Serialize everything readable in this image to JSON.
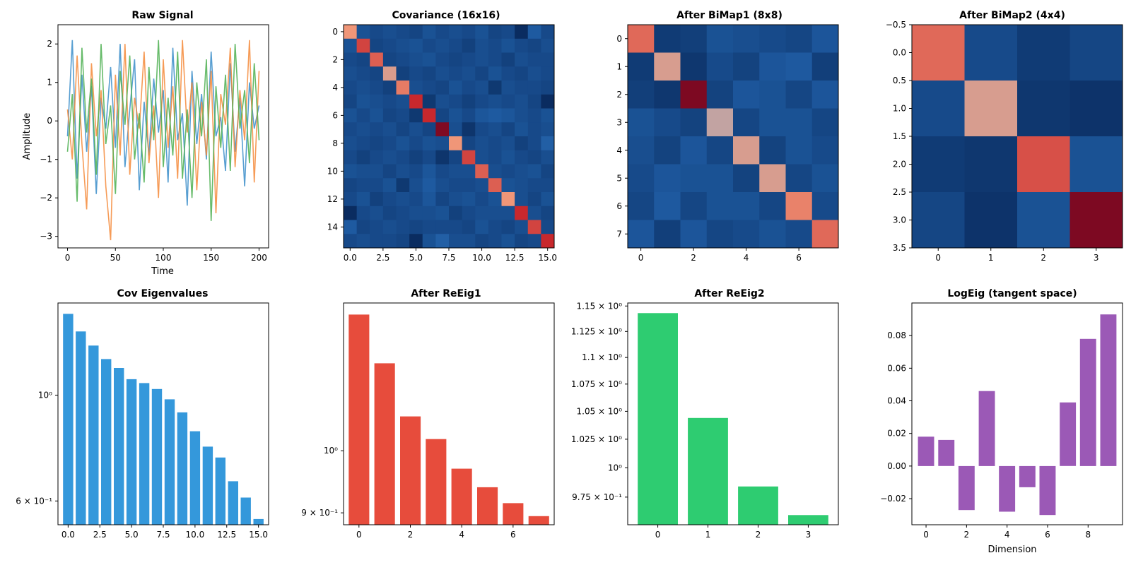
{
  "chart_data": [
    {
      "id": "raw",
      "type": "line",
      "title": "Raw Signal",
      "xlabel": "Time",
      "ylabel": "Amplitude",
      "xlim": [
        -10,
        210
      ],
      "ylim": [
        -3.3,
        2.5
      ],
      "xticks": [
        0,
        50,
        100,
        150,
        200
      ],
      "yticks": [
        -3,
        -2,
        -1,
        0,
        1,
        2
      ],
      "colors": [
        "#3a8dc9",
        "#f58a3a",
        "#4caf50"
      ],
      "series": [
        {
          "x": [
            0,
            5,
            10,
            15,
            20,
            25,
            30,
            35,
            40,
            45,
            50,
            55,
            60,
            65,
            70,
            75,
            80,
            85,
            90,
            95,
            100,
            105,
            110,
            115,
            120,
            125,
            130,
            135,
            140,
            145,
            150,
            155,
            160,
            165,
            170,
            175,
            180,
            185,
            190,
            195,
            200
          ],
          "values": [
            -0.4,
            2.1,
            -1.5,
            1.2,
            -0.8,
            0.9,
            -1.9,
            0.6,
            -0.2,
            1.4,
            -0.7,
            2.0,
            -1.2,
            0.3,
            1.6,
            -1.8,
            0.5,
            -0.9,
            1.1,
            -0.3,
            0.8,
            -1.6,
            1.9,
            -0.5,
            0.2,
            -2.2,
            1.3,
            -0.6,
            0.7,
            -1.0,
            1.8,
            -0.4,
            0.1,
            -1.3,
            1.5,
            -0.8,
            0.6,
            -1.7,
            1.0,
            -0.2,
            0.4
          ]
        },
        {
          "x": [
            0,
            5,
            10,
            15,
            20,
            25,
            30,
            35,
            40,
            45,
            50,
            55,
            60,
            65,
            70,
            75,
            80,
            85,
            90,
            95,
            100,
            105,
            110,
            115,
            120,
            125,
            130,
            135,
            140,
            145,
            150,
            155,
            160,
            165,
            170,
            175,
            180,
            185,
            190,
            195,
            200
          ],
          "values": [
            0.3,
            -1.0,
            1.7,
            -0.6,
            -2.3,
            1.5,
            -0.4,
            0.8,
            -1.7,
            -3.1,
            1.2,
            -0.9,
            2.0,
            -1.4,
            0.6,
            -0.2,
            1.8,
            -1.1,
            0.4,
            -2.0,
            1.6,
            -0.7,
            0.9,
            -1.5,
            2.1,
            -0.3,
            1.0,
            -1.8,
            0.5,
            -0.9,
            1.3,
            -2.4,
            0.7,
            -0.1,
            1.9,
            -1.2,
            0.8,
            -0.5,
            2.1,
            -1.6,
            1.3
          ]
        },
        {
          "x": [
            0,
            5,
            10,
            15,
            20,
            25,
            30,
            35,
            40,
            45,
            50,
            55,
            60,
            65,
            70,
            75,
            80,
            85,
            90,
            95,
            100,
            105,
            110,
            115,
            120,
            125,
            130,
            135,
            140,
            145,
            150,
            155,
            160,
            165,
            170,
            175,
            180,
            185,
            190,
            195,
            200
          ],
          "values": [
            -0.8,
            0.7,
            -2.1,
            1.9,
            -0.3,
            1.1,
            -1.4,
            2.0,
            -0.6,
            0.4,
            -1.9,
            1.3,
            -0.1,
            1.7,
            -1.0,
            0.2,
            -1.6,
            1.4,
            -0.5,
            2.1,
            -1.2,
            0.6,
            -0.9,
            1.8,
            -1.5,
            0.3,
            -2.0,
            1.0,
            -0.4,
            1.6,
            -2.6,
            0.9,
            -0.7,
            1.2,
            -1.3,
            2.0,
            -0.2,
            0.8,
            -1.1,
            1.5,
            -0.5
          ]
        }
      ]
    },
    {
      "id": "cov",
      "type": "heatmap",
      "title": "Covariance (16x16)",
      "rows": 16,
      "cols": 16,
      "xticks": [
        0,
        2.5,
        5.0,
        7.5,
        10.0,
        12.5,
        15.0
      ],
      "yticks": [
        0,
        2,
        4,
        6,
        8,
        10,
        12,
        14
      ],
      "vmin": -0.4,
      "vmax": 1.6,
      "values": [
        [
          1.2,
          0.1,
          0.0,
          0.05,
          0.0,
          -0.05,
          0.1,
          0.0,
          0.05,
          0.0,
          0.1,
          -0.05,
          0.0,
          -0.35,
          0.2,
          0.0
        ],
        [
          0.1,
          1.35,
          -0.05,
          0.0,
          0.05,
          0.1,
          0.0,
          0.05,
          0.0,
          -0.1,
          0.05,
          0.0,
          0.1,
          0.0,
          -0.05,
          0.05
        ],
        [
          0.0,
          -0.05,
          1.3,
          -0.05,
          0.0,
          0.05,
          0.1,
          0.0,
          -0.05,
          0.0,
          0.05,
          0.0,
          -0.1,
          0.05,
          0.0,
          0.0
        ],
        [
          0.05,
          0.0,
          -0.05,
          1.15,
          -0.1,
          0.0,
          -0.05,
          0.05,
          0.0,
          0.05,
          -0.05,
          0.1,
          0.0,
          -0.05,
          0.05,
          0.0
        ],
        [
          0.0,
          0.05,
          0.0,
          -0.1,
          1.25,
          0.05,
          0.0,
          -0.05,
          0.1,
          0.0,
          0.05,
          -0.2,
          0.05,
          0.0,
          0.0,
          -0.05
        ],
        [
          -0.05,
          0.1,
          0.05,
          0.0,
          0.05,
          1.4,
          -0.2,
          0.05,
          0.0,
          -0.1,
          0.0,
          0.05,
          0.0,
          0.05,
          -0.05,
          -0.35
        ],
        [
          0.1,
          0.0,
          0.1,
          -0.05,
          0.0,
          -0.2,
          1.4,
          -0.05,
          0.1,
          0.0,
          0.15,
          0.2,
          0.15,
          0.05,
          0.0,
          0.1
        ],
        [
          0.0,
          0.05,
          0.0,
          0.05,
          -0.05,
          0.05,
          -0.05,
          1.55,
          0.05,
          -0.25,
          0.0,
          0.05,
          -0.05,
          0.1,
          0.0,
          0.05
        ],
        [
          0.05,
          0.0,
          -0.05,
          0.0,
          0.1,
          0.0,
          0.1,
          0.05,
          1.2,
          -0.05,
          0.05,
          0.0,
          0.05,
          -0.1,
          0.0,
          0.25
        ],
        [
          0.0,
          -0.1,
          0.0,
          0.05,
          0.0,
          -0.1,
          0.0,
          -0.25,
          -0.05,
          1.35,
          0.05,
          0.0,
          0.1,
          0.0,
          -0.05,
          0.05
        ],
        [
          0.1,
          0.05,
          0.05,
          -0.05,
          0.05,
          0.0,
          0.15,
          0.0,
          0.05,
          0.05,
          1.3,
          0.05,
          0.0,
          0.05,
          0.1,
          -0.05
        ],
        [
          -0.05,
          0.0,
          0.0,
          0.1,
          -0.2,
          0.05,
          0.2,
          0.05,
          0.0,
          0.0,
          0.05,
          1.3,
          0.1,
          0.05,
          0.0,
          0.0
        ],
        [
          0.0,
          0.1,
          -0.1,
          0.0,
          0.05,
          0.0,
          0.15,
          -0.05,
          0.05,
          0.1,
          0.0,
          0.1,
          1.2,
          0.05,
          -0.05,
          0.1
        ],
        [
          -0.35,
          0.0,
          0.05,
          -0.05,
          0.0,
          0.05,
          0.05,
          0.1,
          -0.1,
          0.0,
          0.05,
          0.05,
          0.05,
          1.4,
          0.05,
          -0.05
        ],
        [
          0.2,
          -0.05,
          0.0,
          0.05,
          0.0,
          -0.05,
          0.0,
          0.0,
          0.0,
          -0.05,
          0.1,
          0.0,
          -0.05,
          0.05,
          1.35,
          0.0
        ],
        [
          0.0,
          0.05,
          0.0,
          0.0,
          -0.05,
          -0.35,
          0.1,
          0.25,
          0.05,
          0.05,
          -0.05,
          0.0,
          0.1,
          -0.05,
          0.0,
          1.4
        ]
      ]
    },
    {
      "id": "bimap1",
      "type": "heatmap",
      "title": "After BiMap1 (8x8)",
      "rows": 8,
      "cols": 8,
      "xticks": [
        0,
        2,
        4,
        6
      ],
      "yticks": [
        0,
        1,
        2,
        3,
        4,
        5,
        6,
        7
      ],
      "vmin": -0.6,
      "vmax": 1.6,
      "values": [
        [
          1.25,
          -0.35,
          -0.3,
          -0.05,
          -0.1,
          -0.15,
          -0.2,
          0.0
        ],
        [
          -0.35,
          1.1,
          -0.4,
          -0.15,
          -0.25,
          0.0,
          0.05,
          -0.3
        ],
        [
          -0.3,
          -0.4,
          1.55,
          -0.25,
          0.0,
          -0.05,
          -0.2,
          0.0
        ],
        [
          -0.05,
          -0.15,
          -0.25,
          1.05,
          -0.2,
          -0.05,
          -0.05,
          -0.2
        ],
        [
          -0.1,
          -0.25,
          0.0,
          -0.2,
          1.1,
          -0.25,
          -0.05,
          -0.15
        ],
        [
          -0.15,
          0.0,
          -0.05,
          -0.05,
          -0.25,
          1.1,
          -0.2,
          -0.05
        ],
        [
          -0.2,
          0.05,
          -0.2,
          -0.05,
          -0.05,
          -0.2,
          1.2,
          -0.15
        ],
        [
          0.0,
          -0.3,
          0.0,
          -0.2,
          -0.15,
          -0.05,
          -0.15,
          1.25
        ]
      ]
    },
    {
      "id": "bimap2",
      "type": "heatmap",
      "title": "After BiMap2 (4x4)",
      "rows": 4,
      "cols": 4,
      "xticks": [
        0,
        1,
        2,
        3
      ],
      "ytick_labels": [
        "−0.5",
        "0.0",
        "0.5",
        "1.0",
        "1.5",
        "2.0",
        "2.5",
        "3.0",
        "3.5"
      ],
      "vmin": -0.6,
      "vmax": 1.6,
      "values": [
        [
          1.25,
          -0.15,
          -0.35,
          -0.2
        ],
        [
          -0.15,
          1.1,
          -0.4,
          -0.45
        ],
        [
          -0.35,
          -0.4,
          1.3,
          -0.05
        ],
        [
          -0.2,
          -0.45,
          -0.05,
          1.55
        ]
      ]
    },
    {
      "id": "coveig",
      "type": "bar",
      "title": "Cov Eigenvalues",
      "yscale": "log",
      "color": "#3498db",
      "x": [
        0,
        1,
        2,
        3,
        4,
        5,
        6,
        7,
        8,
        9,
        10,
        11,
        12,
        13,
        14,
        15
      ],
      "values": [
        1.48,
        1.36,
        1.27,
        1.19,
        1.14,
        1.08,
        1.06,
        1.03,
        0.98,
        0.92,
        0.84,
        0.78,
        0.74,
        0.66,
        0.61,
        0.55
      ],
      "ylim": [
        0.535,
        1.56
      ],
      "xlim": [
        -0.8,
        15.8
      ],
      "xticks": [
        0,
        2.5,
        5.0,
        7.5,
        10.0,
        12.5,
        15.0
      ],
      "ytick_labels": [
        {
          "v": 1.0,
          "t": "10⁰"
        },
        {
          "v": 0.6,
          "t": "6 × 10⁻¹"
        }
      ]
    },
    {
      "id": "reeig1",
      "type": "bar",
      "title": "After ReEig1",
      "yscale": "log",
      "color": "#e74c3c",
      "x": [
        0,
        1,
        2,
        3,
        4,
        5,
        6,
        7
      ],
      "values": [
        1.26,
        1.16,
        1.06,
        1.02,
        0.97,
        0.94,
        0.915,
        0.895
      ],
      "ylim": [
        0.882,
        1.285
      ],
      "xlim": [
        -0.6,
        7.6
      ],
      "xticks": [
        0,
        2,
        4,
        6
      ],
      "ytick_labels": [
        {
          "v": 1.0,
          "t": "10⁰"
        },
        {
          "v": 0.9,
          "t": "9 × 10⁻¹"
        }
      ]
    },
    {
      "id": "reeig2",
      "type": "bar",
      "title": "After ReEig2",
      "yscale": "log",
      "color": "#2ecc71",
      "x": [
        0,
        1,
        2,
        3
      ],
      "values": [
        1.143,
        1.044,
        0.984,
        0.96
      ],
      "ylim": [
        0.952,
        1.153
      ],
      "xlim": [
        -0.6,
        3.6
      ],
      "xticks": [
        0,
        1,
        2,
        3
      ],
      "ytick_labels": [
        {
          "v": 1.15,
          "t": "1.15 × 10⁰"
        },
        {
          "v": 1.125,
          "t": "1.125 × 10⁰"
        },
        {
          "v": 1.1,
          "t": "1.1 × 10⁰"
        },
        {
          "v": 1.075,
          "t": "1.075 × 10⁰"
        },
        {
          "v": 1.05,
          "t": "1.05 × 10⁰"
        },
        {
          "v": 1.025,
          "t": "1.025 × 10⁰"
        },
        {
          "v": 1.0,
          "t": "10⁰"
        },
        {
          "v": 0.975,
          "t": "9.75 × 10⁻¹"
        }
      ]
    },
    {
      "id": "logeig",
      "type": "bar",
      "title": "LogEig (tangent space)",
      "xlabel": "Dimension",
      "yscale": "linear",
      "color": "#9b59b6",
      "x": [
        0,
        1,
        2,
        3,
        4,
        5,
        6,
        7,
        8,
        9
      ],
      "values": [
        0.018,
        0.016,
        -0.027,
        0.046,
        -0.028,
        -0.013,
        -0.03,
        0.039,
        0.078,
        0.093
      ],
      "ylim": [
        -0.036,
        0.1
      ],
      "xlim": [
        -0.7,
        9.7
      ],
      "xticks": [
        0,
        2,
        4,
        6,
        8
      ],
      "ytick_labels": [
        {
          "v": 0.08,
          "t": "0.08"
        },
        {
          "v": 0.06,
          "t": "0.06"
        },
        {
          "v": 0.04,
          "t": "0.04"
        },
        {
          "v": 0.02,
          "t": "0.02"
        },
        {
          "v": 0.0,
          "t": "0.00"
        },
        {
          "v": -0.02,
          "t": "−0.02"
        }
      ]
    }
  ]
}
